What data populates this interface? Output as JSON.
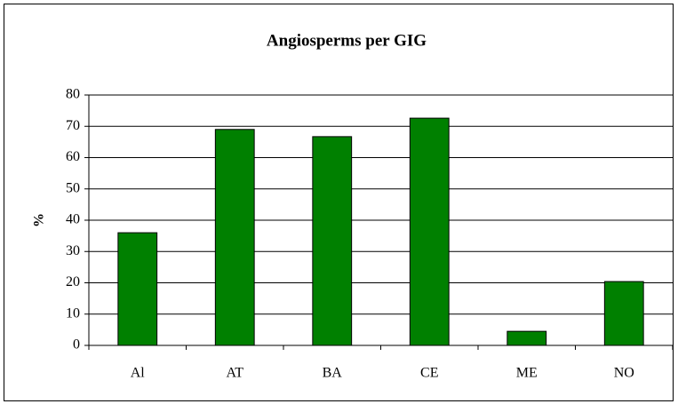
{
  "chart_data": {
    "type": "bar",
    "title": "Angiosperms per GIG",
    "y_label": "%",
    "categories": [
      "Al",
      "AT",
      "BA",
      "CE",
      "ME",
      "NO"
    ],
    "values": [
      36,
      69,
      66.7,
      72.6,
      4.5,
      20.4
    ],
    "color": "#008000",
    "ylim": [
      0,
      80
    ],
    "yticks": [
      0,
      10,
      20,
      30,
      40,
      50,
      60,
      70,
      80
    ],
    "grid": true
  }
}
